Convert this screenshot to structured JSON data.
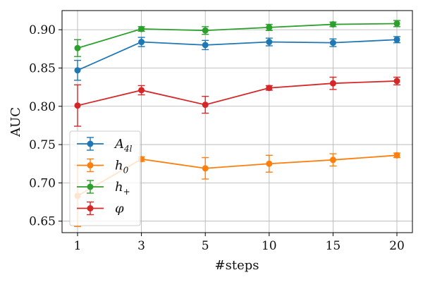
{
  "chart_data": {
    "type": "line",
    "title": "",
    "xlabel": "#steps",
    "ylabel": "AUC",
    "x_categories": [
      "1",
      "3",
      "5",
      "10",
      "15",
      "20"
    ],
    "ylim": [
      0.635,
      0.925
    ],
    "yticks": [
      0.65,
      0.7,
      0.75,
      0.8,
      0.85,
      0.9
    ],
    "ytick_labels": [
      "0.65",
      "0.70",
      "0.75",
      "0.80",
      "0.85",
      "0.90"
    ],
    "grid": true,
    "legend_position": "lower-left",
    "series": [
      {
        "name": "A",
        "subscript": "4l",
        "color": "#1f77b4",
        "values": [
          0.847,
          0.884,
          0.88,
          0.884,
          0.883,
          0.887
        ],
        "errors": [
          0.013,
          0.006,
          0.006,
          0.005,
          0.005,
          0.004
        ]
      },
      {
        "name": "h",
        "subscript": "0",
        "color": "#ff7f0e",
        "values": [
          0.683,
          0.731,
          0.719,
          0.725,
          0.73,
          0.736
        ],
        "errors": [
          0.04,
          0.003,
          0.014,
          0.011,
          0.008,
          0.003
        ]
      },
      {
        "name": "h",
        "subscript": "+",
        "color": "#2ca02c",
        "values": [
          0.876,
          0.901,
          0.899,
          0.903,
          0.907,
          0.908
        ],
        "errors": [
          0.011,
          0.003,
          0.005,
          0.004,
          0.003,
          0.004
        ]
      },
      {
        "name": "φ",
        "subscript": "",
        "color": "#d62728",
        "values": [
          0.801,
          0.821,
          0.802,
          0.824,
          0.83,
          0.833
        ],
        "errors": [
          0.027,
          0.006,
          0.011,
          0.003,
          0.008,
          0.005
        ]
      }
    ]
  }
}
